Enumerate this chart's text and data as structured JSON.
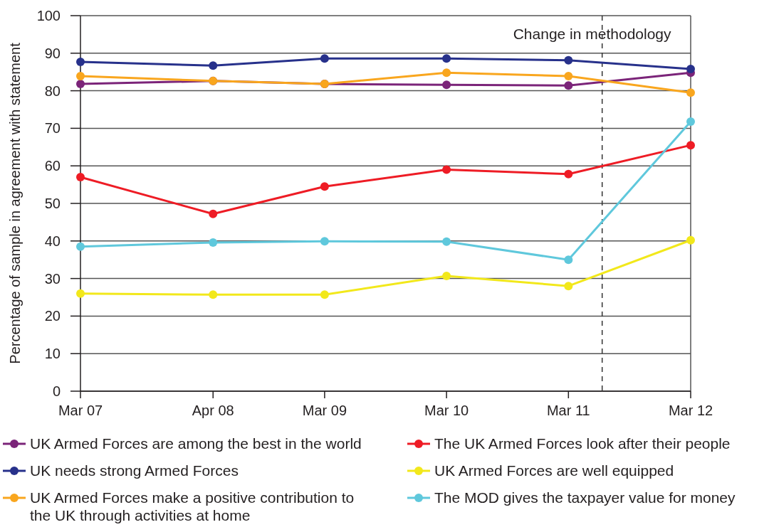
{
  "chart_data": {
    "type": "line",
    "ylabel": "Percentage of sample in agreement with statement",
    "x": [
      "2007-03",
      "2008-04",
      "2009-03",
      "2010-03",
      "2011-03",
      "2012-03"
    ],
    "xlim": [
      "2007-03",
      "2012-03"
    ],
    "xticks": [
      {
        "value": "2007-03",
        "label": "Mar 07"
      },
      {
        "value": "2008-04",
        "label": "Apr 08"
      },
      {
        "value": "2009-03",
        "label": "Mar 09"
      },
      {
        "value": "2010-03",
        "label": "Mar 10"
      },
      {
        "value": "2011-03",
        "label": "Mar 11"
      },
      {
        "value": "2012-03",
        "label": "Mar 12"
      }
    ],
    "ylim": [
      0,
      100
    ],
    "yticks": [
      0,
      10,
      20,
      30,
      40,
      50,
      60,
      70,
      80,
      90,
      100
    ],
    "grid": "y",
    "legend": "bottom",
    "marker": "circle",
    "line_style": "solid",
    "ref_lines": [
      {
        "axis": "x",
        "value": "2011-06-10",
        "label": "Change in methodology",
        "line_style": "dashed",
        "color": "#333333"
      }
    ],
    "series": [
      {
        "name": "UK Armed Forces are among the best in the world",
        "color": "#7b2479",
        "values": [
          81.8,
          82.6,
          81.8,
          81.6,
          81.4,
          84.8
        ]
      },
      {
        "name": "The UK Armed Forces look after their people",
        "color": "#ee1c25",
        "values": [
          57,
          47.2,
          54.5,
          59,
          57.8,
          65.5
        ]
      },
      {
        "name": "UK needs strong Armed Forces",
        "color": "#27318b",
        "values": [
          87.7,
          86.7,
          88.6,
          88.6,
          88.1,
          85.8
        ]
      },
      {
        "name": "UK Armed Forces are well equipped",
        "color": "#f2e81b",
        "values": [
          26,
          25.7,
          25.7,
          30.7,
          28,
          40.2
        ]
      },
      {
        "name": "UK Armed Forces make a positive contribution to the UK through activities at home",
        "color": "#f9a61e",
        "values": [
          83.9,
          82.6,
          81.8,
          84.8,
          83.9,
          79.5
        ]
      },
      {
        "name": "The MOD gives the taxpayer value for money",
        "color": "#5fc8dc",
        "values": [
          38.5,
          39.6,
          39.9,
          39.8,
          35,
          71.8
        ]
      }
    ]
  }
}
